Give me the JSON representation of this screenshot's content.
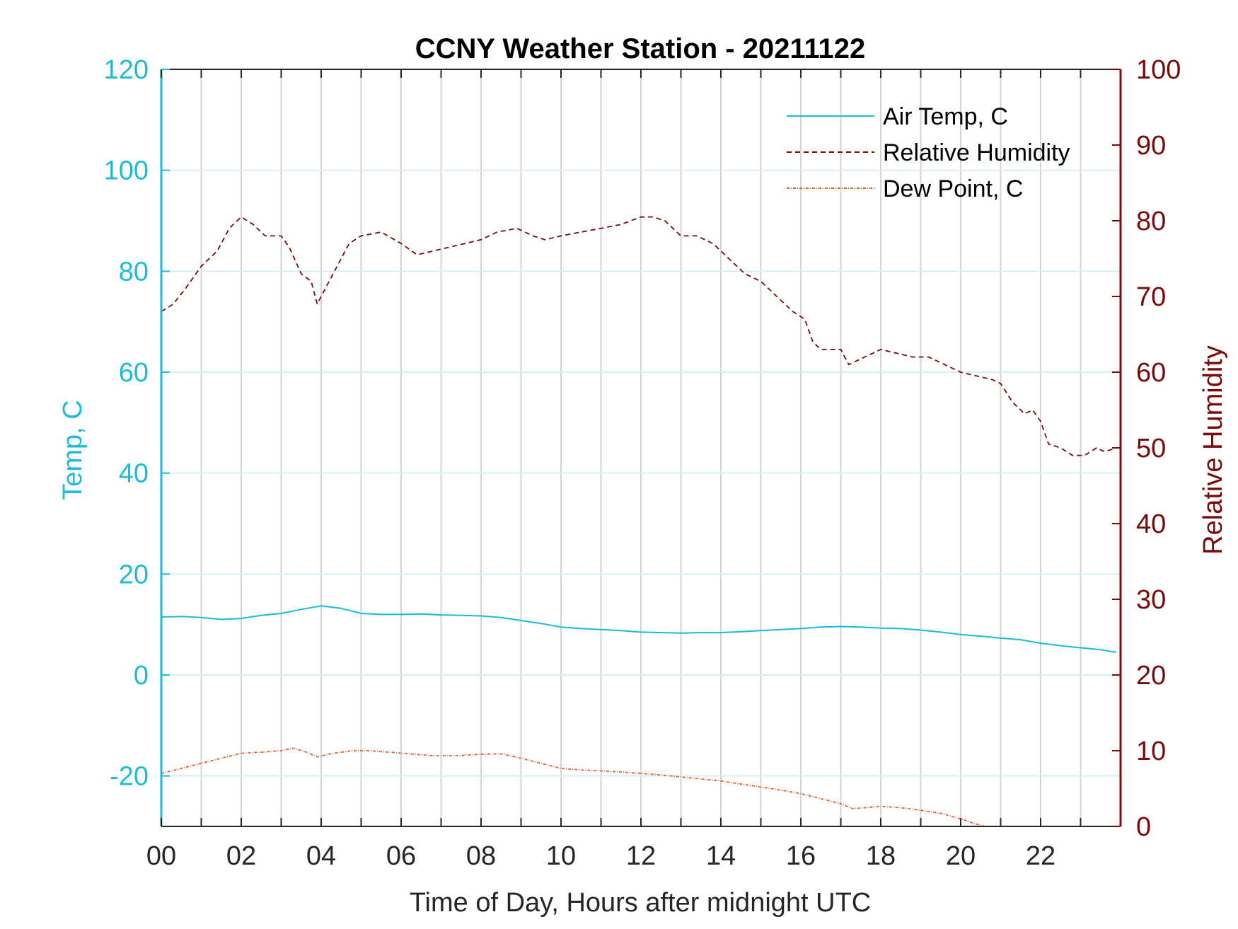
{
  "chart_data": {
    "type": "line",
    "title": "CCNY Weather Station - 20211122",
    "xlabel": "Time of Day, Hours after midnight UTC",
    "ylabel_left": "Temp, C",
    "ylabel_right": "Relative Humidity",
    "xlim": [
      0,
      24
    ],
    "ylim_left": [
      -30,
      120
    ],
    "ylim_right": [
      0,
      100
    ],
    "x_ticks": [
      0,
      2,
      4,
      6,
      8,
      10,
      12,
      14,
      16,
      18,
      20,
      22
    ],
    "x_tick_labels": [
      "00",
      "02",
      "04",
      "06",
      "08",
      "10",
      "12",
      "14",
      "16",
      "18",
      "20",
      "22"
    ],
    "y_left_ticks": [
      -20,
      0,
      20,
      40,
      60,
      80,
      100,
      120
    ],
    "y_left_tick_labels": [
      "-20",
      "0",
      "20",
      "40",
      "60",
      "80",
      "100",
      "120"
    ],
    "y_right_ticks": [
      0,
      10,
      20,
      30,
      40,
      50,
      60,
      70,
      80,
      90,
      100
    ],
    "y_right_tick_labels": [
      "0",
      "10",
      "20",
      "30",
      "40",
      "50",
      "60",
      "70",
      "80",
      "90",
      "100"
    ],
    "grid": true,
    "legend_position": "top-right",
    "colors": {
      "left_axis": "#1bbcd6",
      "right_axis": "#7a0a0a",
      "air_temp": "#1bbcd6",
      "humidity": "#7a0a0a",
      "dew_point": "#e0602a",
      "vgrid": "#d4d4d4",
      "hgrid": "#d6f1f6"
    },
    "series": [
      {
        "name": "Air Temp, C",
        "axis": "left",
        "style": "solid",
        "x": [
          0,
          0.5,
          1,
          1.5,
          2,
          2.5,
          3,
          3.5,
          4,
          4.5,
          5,
          5.5,
          6,
          6.5,
          7,
          7.5,
          8,
          8.5,
          9,
          9.5,
          10,
          10.5,
          11,
          11.5,
          12,
          12.5,
          13,
          13.5,
          14,
          14.5,
          15,
          15.5,
          16,
          16.5,
          17,
          17.5,
          18,
          18.5,
          19,
          19.5,
          20,
          20.5,
          21,
          21.5,
          22,
          22.5,
          23,
          23.5,
          23.9
        ],
        "y": [
          11.5,
          11.6,
          11.4,
          11.0,
          11.2,
          11.8,
          12.2,
          13.0,
          13.7,
          13.2,
          12.2,
          12.0,
          12.0,
          12.1,
          11.9,
          11.8,
          11.7,
          11.4,
          10.8,
          10.2,
          9.5,
          9.2,
          9.0,
          8.8,
          8.5,
          8.4,
          8.3,
          8.4,
          8.4,
          8.6,
          8.8,
          9.0,
          9.2,
          9.5,
          9.6,
          9.5,
          9.3,
          9.2,
          8.9,
          8.5,
          8.0,
          7.7,
          7.3,
          7.0,
          6.3,
          5.8,
          5.4,
          5.0,
          4.5
        ]
      },
      {
        "name": "Relative Humidity",
        "axis": "right",
        "style": "dashed",
        "x": [
          0,
          0.3,
          0.6,
          1.0,
          1.4,
          1.7,
          2.0,
          2.3,
          2.6,
          3.0,
          3.2,
          3.5,
          3.75,
          3.9,
          4.1,
          4.4,
          4.7,
          5.0,
          5.5,
          6.0,
          6.4,
          6.8,
          7.2,
          7.6,
          8.0,
          8.4,
          8.9,
          9.3,
          9.6,
          10.0,
          10.5,
          11.0,
          11.5,
          12.0,
          12.3,
          12.6,
          13.0,
          13.4,
          13.8,
          14.2,
          14.6,
          15.0,
          15.4,
          15.8,
          16.1,
          16.3,
          16.5,
          16.8,
          17.0,
          17.2,
          17.6,
          18.0,
          18.4,
          18.8,
          19.2,
          19.6,
          20.0,
          20.4,
          20.8,
          21.0,
          21.3,
          21.6,
          21.8,
          22.0,
          22.2,
          22.5,
          22.8,
          23.1,
          23.4,
          23.6,
          23.9
        ],
        "y": [
          68,
          69,
          71,
          74,
          76,
          79,
          80.5,
          79.5,
          78,
          78,
          76.5,
          73,
          72,
          69,
          71,
          74,
          77,
          78,
          78.5,
          77,
          75.5,
          76,
          76.5,
          77,
          77.5,
          78.5,
          79,
          78,
          77.5,
          78,
          78.5,
          79,
          79.5,
          80.5,
          80.5,
          80,
          78,
          78,
          77,
          75,
          73,
          72,
          70,
          68,
          67,
          64,
          63,
          63,
          63,
          61,
          62,
          63,
          62.5,
          62,
          62,
          61,
          60,
          59.5,
          59,
          58.5,
          56,
          54.5,
          55,
          53.5,
          50.5,
          50,
          49,
          49,
          50,
          49.5,
          50
        ]
      },
      {
        "name": "Dew Point, C",
        "axis": "left",
        "style": "dashdot",
        "x": [
          0,
          0.5,
          1.0,
          1.5,
          2.0,
          2.5,
          3.0,
          3.3,
          3.6,
          3.9,
          4.3,
          4.8,
          5.2,
          5.7,
          6.2,
          6.8,
          7.4,
          8.0,
          8.5,
          9.0,
          9.5,
          10.0,
          10.5,
          11.0,
          11.5,
          12.0,
          12.5,
          13.0,
          13.5,
          14.0,
          14.5,
          15.0,
          15.5,
          16.0,
          16.5,
          17.0,
          17.3,
          17.6,
          18.0,
          18.5,
          19.0,
          19.5,
          20.0,
          20.3,
          20.6
        ],
        "y": [
          -19.5,
          -18.5,
          -17.5,
          -16.5,
          -15.5,
          -15.3,
          -15.0,
          -14.5,
          -15.2,
          -16.2,
          -15.5,
          -15.0,
          -15.0,
          -15.3,
          -15.6,
          -16.0,
          -16.0,
          -15.7,
          -15.6,
          -16.5,
          -17.5,
          -18.5,
          -18.8,
          -19.0,
          -19.2,
          -19.5,
          -19.8,
          -20.2,
          -20.6,
          -21.0,
          -21.6,
          -22.2,
          -22.8,
          -23.5,
          -24.5,
          -25.5,
          -26.5,
          -26.3,
          -26.0,
          -26.3,
          -26.8,
          -27.4,
          -28.5,
          -29.3,
          -30.0
        ]
      }
    ]
  }
}
